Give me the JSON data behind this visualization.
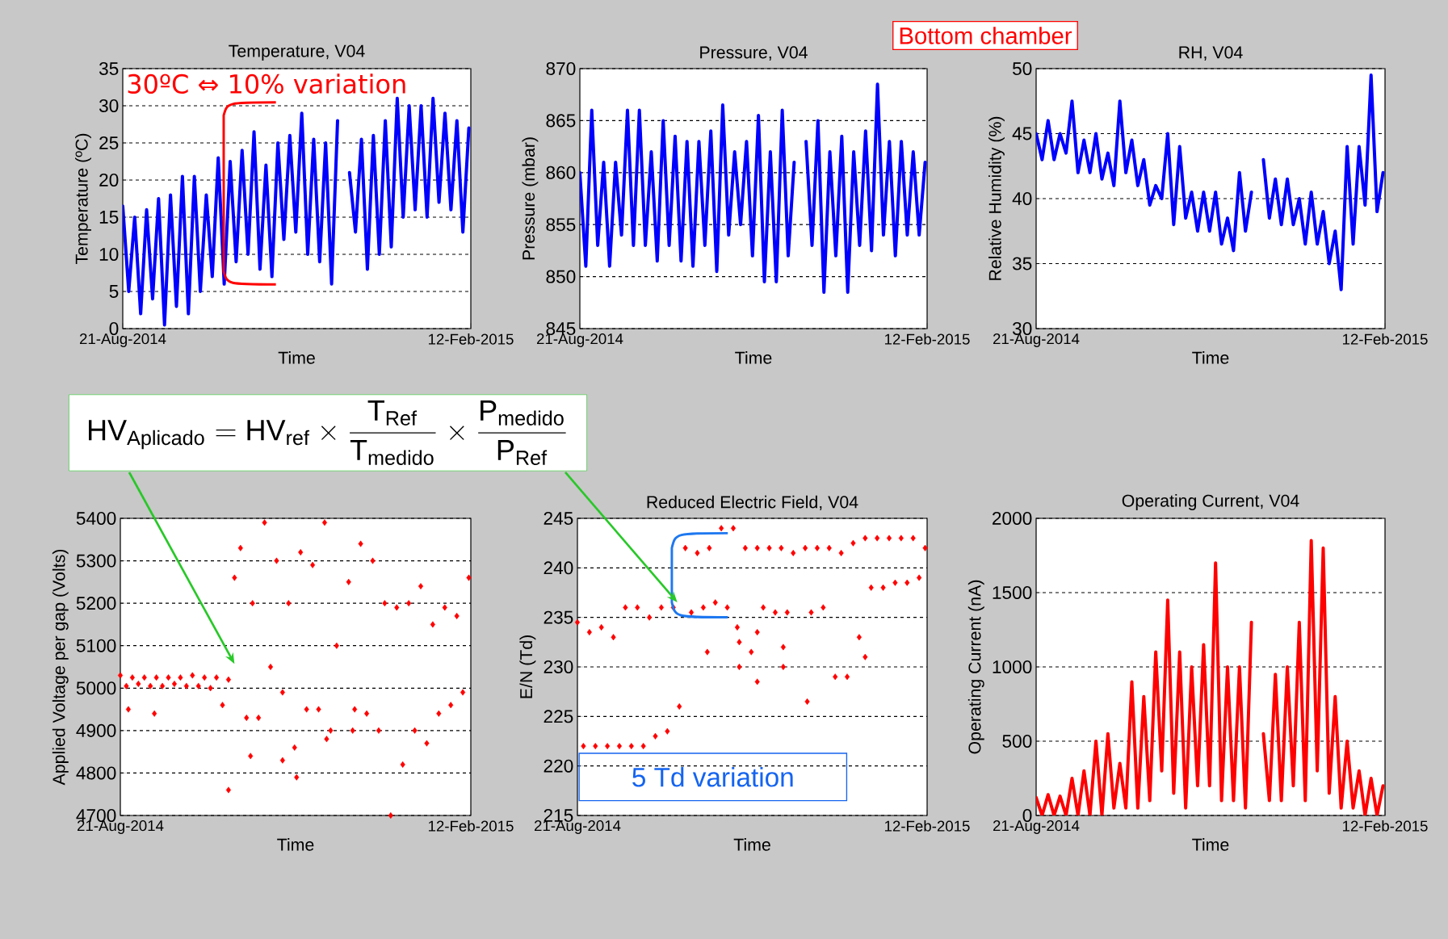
{
  "chart_data": [
    {
      "type": "line",
      "title": "Temperature, V04",
      "xlabel": "Time",
      "ylabel": "Temperature (ºC)",
      "grid": "y",
      "x": [
        "2014-08-21",
        "2014-08-24",
        "2014-08-27",
        "2014-08-30",
        "2014-09-02",
        "2014-09-05",
        "2014-09-08",
        "2014-09-11",
        "2014-09-14",
        "2014-09-17",
        "2014-09-20",
        "2014-09-23",
        "2014-09-26",
        "2014-09-29",
        "2014-10-02",
        "2014-10-05",
        "2014-10-08",
        "2014-10-11",
        "2014-10-14",
        "2014-10-17",
        "2014-10-20",
        "2014-10-23",
        "2014-10-26",
        "2014-10-29",
        "2014-11-01",
        "2014-11-04",
        "2014-11-07",
        "2014-11-10",
        "2014-11-13",
        "2014-11-16",
        "2014-11-19",
        "2014-11-22",
        "2014-11-25",
        "2014-11-28",
        "2014-12-01",
        "2014-12-04",
        "2014-12-07",
        "2014-12-10",
        "2014-12-13",
        "2014-12-16",
        "2014-12-19",
        "2014-12-22",
        "2014-12-25",
        "2014-12-28",
        "2014-12-31",
        "2015-01-03",
        "2015-01-06",
        "2015-01-09",
        "2015-01-12",
        "2015-01-15",
        "2015-01-18",
        "2015-01-21",
        "2015-01-24",
        "2015-01-27",
        "2015-01-30",
        "2015-02-02",
        "2015-02-05",
        "2015-02-08",
        "2015-02-11"
      ],
      "xlim": [
        "2014-08-21",
        "2015-02-12"
      ],
      "xticks": [
        {
          "value": "2014-08-21",
          "label": "21-Aug-2014"
        },
        {
          "value": "2015-02-12",
          "label": "12-Feb-2015"
        }
      ],
      "ylim": [
        0,
        35
      ],
      "yticks": [
        0,
        5,
        10,
        15,
        20,
        25,
        30,
        35
      ],
      "series": [
        {
          "color": "#0000ff",
          "values": [
            16.5,
            5,
            15,
            2,
            16,
            4,
            17.5,
            0.5,
            18,
            3,
            20.5,
            2,
            20.5,
            5,
            18,
            7,
            23,
            6,
            22.5,
            9,
            24,
            10,
            26.5,
            8,
            22,
            7,
            25,
            12,
            26,
            13,
            29,
            10,
            25.5,
            9,
            25,
            6,
            28,
            null,
            21,
            13,
            25.5,
            8,
            26,
            10,
            28,
            11,
            31,
            15,
            30,
            16,
            30,
            15,
            31,
            17,
            29,
            16,
            28,
            13,
            27
          ]
        }
      ],
      "annotations": [
        "30ºC ⇔ 10% variation"
      ]
    },
    {
      "type": "line",
      "title": "Pressure, V04",
      "xlabel": "Time",
      "ylabel": "Pressure (mbar)",
      "grid": "y",
      "x": [
        "2014-08-21",
        "2014-08-24",
        "2014-08-27",
        "2014-08-30",
        "2014-09-02",
        "2014-09-05",
        "2014-09-08",
        "2014-09-11",
        "2014-09-14",
        "2014-09-17",
        "2014-09-20",
        "2014-09-23",
        "2014-09-26",
        "2014-09-29",
        "2014-10-02",
        "2014-10-05",
        "2014-10-08",
        "2014-10-11",
        "2014-10-14",
        "2014-10-17",
        "2014-10-20",
        "2014-10-23",
        "2014-10-26",
        "2014-10-29",
        "2014-11-01",
        "2014-11-04",
        "2014-11-07",
        "2014-11-10",
        "2014-11-13",
        "2014-11-16",
        "2014-11-19",
        "2014-11-22",
        "2014-11-25",
        "2014-11-28",
        "2014-12-01",
        "2014-12-04",
        "2014-12-07",
        "2014-12-10",
        "2014-12-13",
        "2014-12-16",
        "2014-12-19",
        "2014-12-22",
        "2014-12-25",
        "2014-12-28",
        "2014-12-31",
        "2015-01-03",
        "2015-01-06",
        "2015-01-09",
        "2015-01-12",
        "2015-01-15",
        "2015-01-18",
        "2015-01-21",
        "2015-01-24",
        "2015-01-27",
        "2015-01-30",
        "2015-02-02",
        "2015-02-05",
        "2015-02-08",
        "2015-02-11"
      ],
      "xlim": [
        "2014-08-21",
        "2015-02-12"
      ],
      "xticks": [
        {
          "value": "2014-08-21",
          "label": "21-Aug-2014"
        },
        {
          "value": "2015-02-12",
          "label": "12-Feb-2015"
        }
      ],
      "ylim": [
        845,
        870
      ],
      "yticks": [
        845,
        850,
        855,
        860,
        865,
        870
      ],
      "series": [
        {
          "color": "#0000ff",
          "values": [
            860,
            851,
            866,
            853,
            861,
            851,
            861,
            854,
            866,
            853,
            866,
            853,
            862,
            851.5,
            865,
            853,
            863.5,
            851.5,
            863,
            851,
            863,
            853,
            864,
            850.5,
            866.5,
            854,
            862,
            855,
            863,
            852,
            865.5,
            849.5,
            862,
            849.5,
            866,
            852,
            861,
            null,
            863,
            853,
            865,
            848.5,
            862,
            852,
            863.5,
            848.5,
            862,
            853,
            864,
            852.5,
            868.5,
            854,
            863,
            852,
            863,
            854,
            862,
            854,
            861
          ]
        }
      ],
      "annotations": [
        "Bottom chamber"
      ]
    },
    {
      "type": "line",
      "title": "RH, V04",
      "xlabel": "Time",
      "ylabel": "Relative Humidity (%)",
      "grid": "y",
      "x": [
        "2014-08-21",
        "2014-08-24",
        "2014-08-27",
        "2014-08-30",
        "2014-09-02",
        "2014-09-05",
        "2014-09-08",
        "2014-09-11",
        "2014-09-14",
        "2014-09-17",
        "2014-09-20",
        "2014-09-23",
        "2014-09-26",
        "2014-09-29",
        "2014-10-02",
        "2014-10-05",
        "2014-10-08",
        "2014-10-11",
        "2014-10-14",
        "2014-10-17",
        "2014-10-20",
        "2014-10-23",
        "2014-10-26",
        "2014-10-29",
        "2014-11-01",
        "2014-11-04",
        "2014-11-07",
        "2014-11-10",
        "2014-11-13",
        "2014-11-16",
        "2014-11-19",
        "2014-11-22",
        "2014-11-25",
        "2014-11-28",
        "2014-12-01",
        "2014-12-04",
        "2014-12-07",
        "2014-12-10",
        "2014-12-13",
        "2014-12-16",
        "2014-12-19",
        "2014-12-22",
        "2014-12-25",
        "2014-12-28",
        "2014-12-31",
        "2015-01-03",
        "2015-01-06",
        "2015-01-09",
        "2015-01-12",
        "2015-01-15",
        "2015-01-18",
        "2015-01-21",
        "2015-01-24",
        "2015-01-27",
        "2015-01-30",
        "2015-02-02",
        "2015-02-05",
        "2015-02-08",
        "2015-02-11"
      ],
      "xlim": [
        "2014-08-21",
        "2015-02-12"
      ],
      "xticks": [
        {
          "value": "2014-08-21",
          "label": "21-Aug-2014"
        },
        {
          "value": "2015-02-12",
          "label": "12-Feb-2015"
        }
      ],
      "ylim": [
        30,
        50
      ],
      "yticks": [
        30,
        35,
        40,
        45,
        50
      ],
      "series": [
        {
          "color": "#0000ff",
          "values": [
            45,
            43,
            46,
            43,
            45,
            43.5,
            47.5,
            42,
            44.5,
            42,
            45,
            41.5,
            43.5,
            41,
            47.5,
            42,
            44.5,
            41,
            43,
            39.5,
            41,
            40,
            45,
            38,
            44,
            38.5,
            40.5,
            37.5,
            40.5,
            37.5,
            40.5,
            36.5,
            38.5,
            36,
            42,
            37.5,
            40.5,
            null,
            43,
            38.5,
            41.5,
            38,
            41.5,
            38,
            40,
            36.5,
            40.5,
            36.5,
            39,
            35,
            37.5,
            33,
            44,
            36.5,
            44,
            39.5,
            49.5,
            39,
            42
          ]
        }
      ]
    },
    {
      "type": "scatter",
      "xlabel": "Time",
      "ylabel": "Applied Voltage per gap (Volts)",
      "grid": "y",
      "marker": "diamond",
      "x": [
        "2014-08-21",
        "2014-08-24",
        "2014-08-27",
        "2014-08-30",
        "2014-09-02",
        "2014-09-05",
        "2014-09-08",
        "2014-09-11",
        "2014-09-14",
        "2014-09-17",
        "2014-09-20",
        "2014-09-23",
        "2014-09-26",
        "2014-09-29",
        "2014-10-02",
        "2014-10-05",
        "2014-10-08",
        "2014-10-11",
        "2014-10-14",
        "2014-10-17",
        "2014-10-20",
        "2014-10-23",
        "2014-10-26",
        "2014-10-29",
        "2014-11-01",
        "2014-11-04",
        "2014-11-07",
        "2014-11-10",
        "2014-11-13",
        "2014-11-16",
        "2014-11-19",
        "2014-11-22",
        "2014-11-25",
        "2014-11-28",
        "2014-12-01",
        "2014-12-04",
        "2014-12-07",
        "2014-12-10",
        "2014-12-13",
        "2014-12-16",
        "2014-12-19",
        "2014-12-22",
        "2014-12-25",
        "2014-12-28",
        "2014-12-31",
        "2015-01-03",
        "2015-01-06",
        "2015-01-09",
        "2015-01-12",
        "2015-01-15",
        "2015-01-18",
        "2015-01-21",
        "2015-01-24",
        "2015-01-27",
        "2015-01-30",
        "2015-02-02",
        "2015-02-05",
        "2015-02-08",
        "2015-02-11"
      ],
      "xlim": [
        "2014-08-21",
        "2015-02-12"
      ],
      "xticks": [
        {
          "value": "2014-08-21",
          "label": "21-Aug-2014"
        },
        {
          "value": "2015-02-12",
          "label": "12-Feb-2015"
        }
      ],
      "ylim": [
        4700,
        5400
      ],
      "yticks": [
        4700,
        4800,
        4900,
        5000,
        5100,
        5200,
        5300,
        5400
      ],
      "series": [
        {
          "color": "#ff0000",
          "values": [
            5030,
            5005,
            5025,
            5010,
            5025,
            5005,
            5025,
            5005,
            5025,
            5010,
            5025,
            5005,
            5030,
            5005,
            5025,
            5000,
            5025,
            4960,
            5020,
            5260,
            5330,
            4930,
            5200,
            4930,
            5390,
            5050,
            5300,
            4990,
            5200,
            4860,
            5320,
            4950,
            5290,
            4950,
            5390,
            4900,
            5100,
            null,
            5250,
            4950,
            5340,
            4940,
            5300,
            4900,
            5200,
            4700,
            5190,
            4820,
            5200,
            4900,
            5240,
            4870,
            5150,
            4940,
            5190,
            4960,
            5170,
            4990,
            5260
          ]
        },
        {
          "color": "#ff0000",
          "x": [
            "2014-08-25",
            "2014-09-07",
            "2014-10-14",
            "2014-10-25",
            "2014-11-10",
            "2014-11-17",
            "2014-12-02",
            "2014-12-15"
          ],
          "values": [
            4950,
            4940,
            4760,
            4840,
            4830,
            4790,
            4880,
            4900
          ]
        }
      ],
      "annotations": [
        "\\mathrm{HV}_{\\mathrm{Aplicado}} = \\mathrm{HV}_{\\mathrm{ref}} \\times \\frac{\\mathrm{T}_{\\mathrm{Ref}}}{\\mathrm{T}_{\\mathrm{medido}}} \\times \\frac{\\mathrm{P}_{\\mathrm{medido}}}{\\mathrm{P}_{\\mathrm{Ref}}}"
      ]
    },
    {
      "type": "scatter",
      "title": "Reduced Electric Field, V04",
      "xlabel": "Time",
      "ylabel": "E/N (Td)",
      "grid": "y",
      "marker": "diamond",
      "x": [
        "2014-08-21",
        "2014-08-24",
        "2014-08-27",
        "2014-08-30",
        "2014-09-02",
        "2014-09-05",
        "2014-09-08",
        "2014-09-11",
        "2014-09-14",
        "2014-09-17",
        "2014-09-20",
        "2014-09-23",
        "2014-09-26",
        "2014-09-29",
        "2014-10-02",
        "2014-10-05",
        "2014-10-08",
        "2014-10-11",
        "2014-10-14",
        "2014-10-17",
        "2014-10-20",
        "2014-10-23",
        "2014-10-26",
        "2014-10-29",
        "2014-11-01",
        "2014-11-04",
        "2014-11-07",
        "2014-11-10",
        "2014-11-13",
        "2014-11-16",
        "2014-11-19",
        "2014-11-22",
        "2014-11-25",
        "2014-11-28",
        "2014-12-01",
        "2014-12-04",
        "2014-12-07",
        "2014-12-10",
        "2014-12-13",
        "2014-12-16",
        "2014-12-19",
        "2014-12-22",
        "2014-12-25",
        "2014-12-28",
        "2014-12-31",
        "2015-01-03",
        "2015-01-06",
        "2015-01-09",
        "2015-01-12",
        "2015-01-15",
        "2015-01-18",
        "2015-01-21",
        "2015-01-24",
        "2015-01-27",
        "2015-01-30",
        "2015-02-02",
        "2015-02-05",
        "2015-02-08",
        "2015-02-11"
      ],
      "xlim": [
        "2014-08-21",
        "2015-02-12"
      ],
      "xticks": [
        {
          "value": "2014-08-21",
          "label": "21-Aug-2014"
        },
        {
          "value": "2015-02-12",
          "label": "12-Feb-2015"
        }
      ],
      "ylim": [
        215,
        245
      ],
      "yticks": [
        215,
        220,
        225,
        230,
        235,
        240,
        245
      ],
      "series": [
        {
          "color": "#ff0000",
          "values": [
            234.5,
            222,
            233.5,
            222,
            234,
            222,
            233,
            222,
            236,
            222,
            236,
            222,
            235,
            223,
            236,
            223.5,
            236,
            226,
            242,
            235.5,
            241.5,
            236,
            242,
            236.5,
            244,
            236,
            244,
            232.5,
            242,
            231.5,
            242,
            236,
            242,
            235.5,
            242,
            235.5,
            241.5,
            null,
            242,
            235.5,
            242,
            236,
            242,
            229,
            241.5,
            229,
            242.5,
            233,
            243,
            238,
            243,
            238,
            243,
            238.5,
            243,
            238.5,
            243,
            239,
            242
          ]
        },
        {
          "color": "#ff0000",
          "x": [
            "2014-10-25",
            "2014-11-09",
            "2014-11-10",
            "2014-11-19",
            "2014-11-19",
            "2014-12-02",
            "2014-12-02",
            "2014-12-14",
            "2015-01-12"
          ],
          "values": [
            231.5,
            234,
            230,
            228.5,
            233.5,
            232,
            230,
            226.5,
            231
          ]
        }
      ],
      "annotations": [
        "5 Td variation"
      ]
    },
    {
      "type": "line",
      "title": "Operating Current, V04",
      "xlabel": "Time",
      "ylabel": "Operating Current (nA)",
      "grid": "y",
      "x": [
        "2014-08-21",
        "2014-08-24",
        "2014-08-27",
        "2014-08-30",
        "2014-09-02",
        "2014-09-05",
        "2014-09-08",
        "2014-09-11",
        "2014-09-14",
        "2014-09-17",
        "2014-09-20",
        "2014-09-23",
        "2014-09-26",
        "2014-09-29",
        "2014-10-02",
        "2014-10-05",
        "2014-10-08",
        "2014-10-11",
        "2014-10-14",
        "2014-10-17",
        "2014-10-20",
        "2014-10-23",
        "2014-10-26",
        "2014-10-29",
        "2014-11-01",
        "2014-11-04",
        "2014-11-07",
        "2014-11-10",
        "2014-11-13",
        "2014-11-16",
        "2014-11-19",
        "2014-11-22",
        "2014-11-25",
        "2014-11-28",
        "2014-12-01",
        "2014-12-04",
        "2014-12-07",
        "2014-12-10",
        "2014-12-13",
        "2014-12-16",
        "2014-12-19",
        "2014-12-22",
        "2014-12-25",
        "2014-12-28",
        "2014-12-31",
        "2015-01-03",
        "2015-01-06",
        "2015-01-09",
        "2015-01-12",
        "2015-01-15",
        "2015-01-18",
        "2015-01-21",
        "2015-01-24",
        "2015-01-27",
        "2015-01-30",
        "2015-02-02",
        "2015-02-05",
        "2015-02-08",
        "2015-02-11"
      ],
      "xlim": [
        "2014-08-21",
        "2015-02-12"
      ],
      "xticks": [
        {
          "value": "2014-08-21",
          "label": "21-Aug-2014"
        },
        {
          "value": "2015-02-12",
          "label": "12-Feb-2015"
        }
      ],
      "ylim": [
        0,
        2000
      ],
      "yticks": [
        0,
        500,
        1000,
        1500,
        2000
      ],
      "series": [
        {
          "color": "#ff0000",
          "values": [
            120,
            0,
            140,
            0,
            130,
            0,
            250,
            0,
            300,
            0,
            500,
            0,
            550,
            50,
            350,
            50,
            900,
            50,
            800,
            100,
            1100,
            300,
            1450,
            150,
            1100,
            50,
            1000,
            200,
            1150,
            200,
            1700,
            100,
            1000,
            100,
            1000,
            50,
            1300,
            null,
            550,
            100,
            950,
            100,
            1000,
            200,
            1300,
            100,
            1850,
            300,
            1800,
            150,
            800,
            50,
            500,
            50,
            300,
            0,
            250,
            0,
            200
          ]
        }
      ]
    }
  ]
}
